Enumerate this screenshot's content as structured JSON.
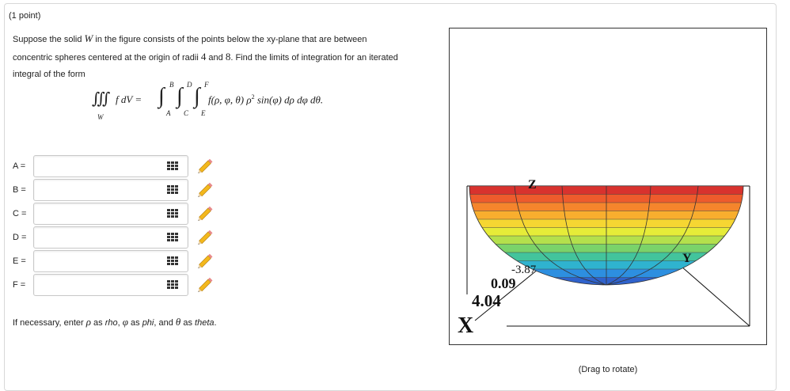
{
  "header": {
    "points": "(1 point)"
  },
  "problem": {
    "segments": [
      "Suppose the solid ",
      "W",
      " in the figure consists of the points below the xy-plane that are between concentric spheres centered at the origin of radii ",
      "4",
      " and ",
      "8",
      ". Find the limits of integration for an iterated integral of the form"
    ]
  },
  "formula": {
    "triple_integral": "∭",
    "region": "W",
    "lhs": "f dV =",
    "integral_signs": [
      "∫",
      "∫",
      "∫"
    ],
    "limits": [
      {
        "upper": "B",
        "lower": "A"
      },
      {
        "upper": "D",
        "lower": "C"
      },
      {
        "upper": "F",
        "lower": "E"
      }
    ],
    "integrand": "f(ρ, φ, θ) ρ",
    "power": "2",
    "tail": " sin(φ) dρ dφ dθ."
  },
  "answers": [
    {
      "label": "A ="
    },
    {
      "label": "B ="
    },
    {
      "label": "C ="
    },
    {
      "label": "D ="
    },
    {
      "label": "E ="
    },
    {
      "label": "F ="
    }
  ],
  "note": {
    "segments": [
      "If necessary, enter ",
      "ρ",
      " as ",
      "rho",
      ", ",
      "φ",
      " as ",
      "phi",
      ", and ",
      "θ",
      " as ",
      "theta",
      "."
    ]
  },
  "figure": {
    "axis_labels": {
      "z": "Z",
      "y": "Y",
      "x": "X"
    },
    "tick_labels": [
      "-3.87",
      "0.09",
      "4.04"
    ],
    "caption": "(Drag to rotate)"
  }
}
